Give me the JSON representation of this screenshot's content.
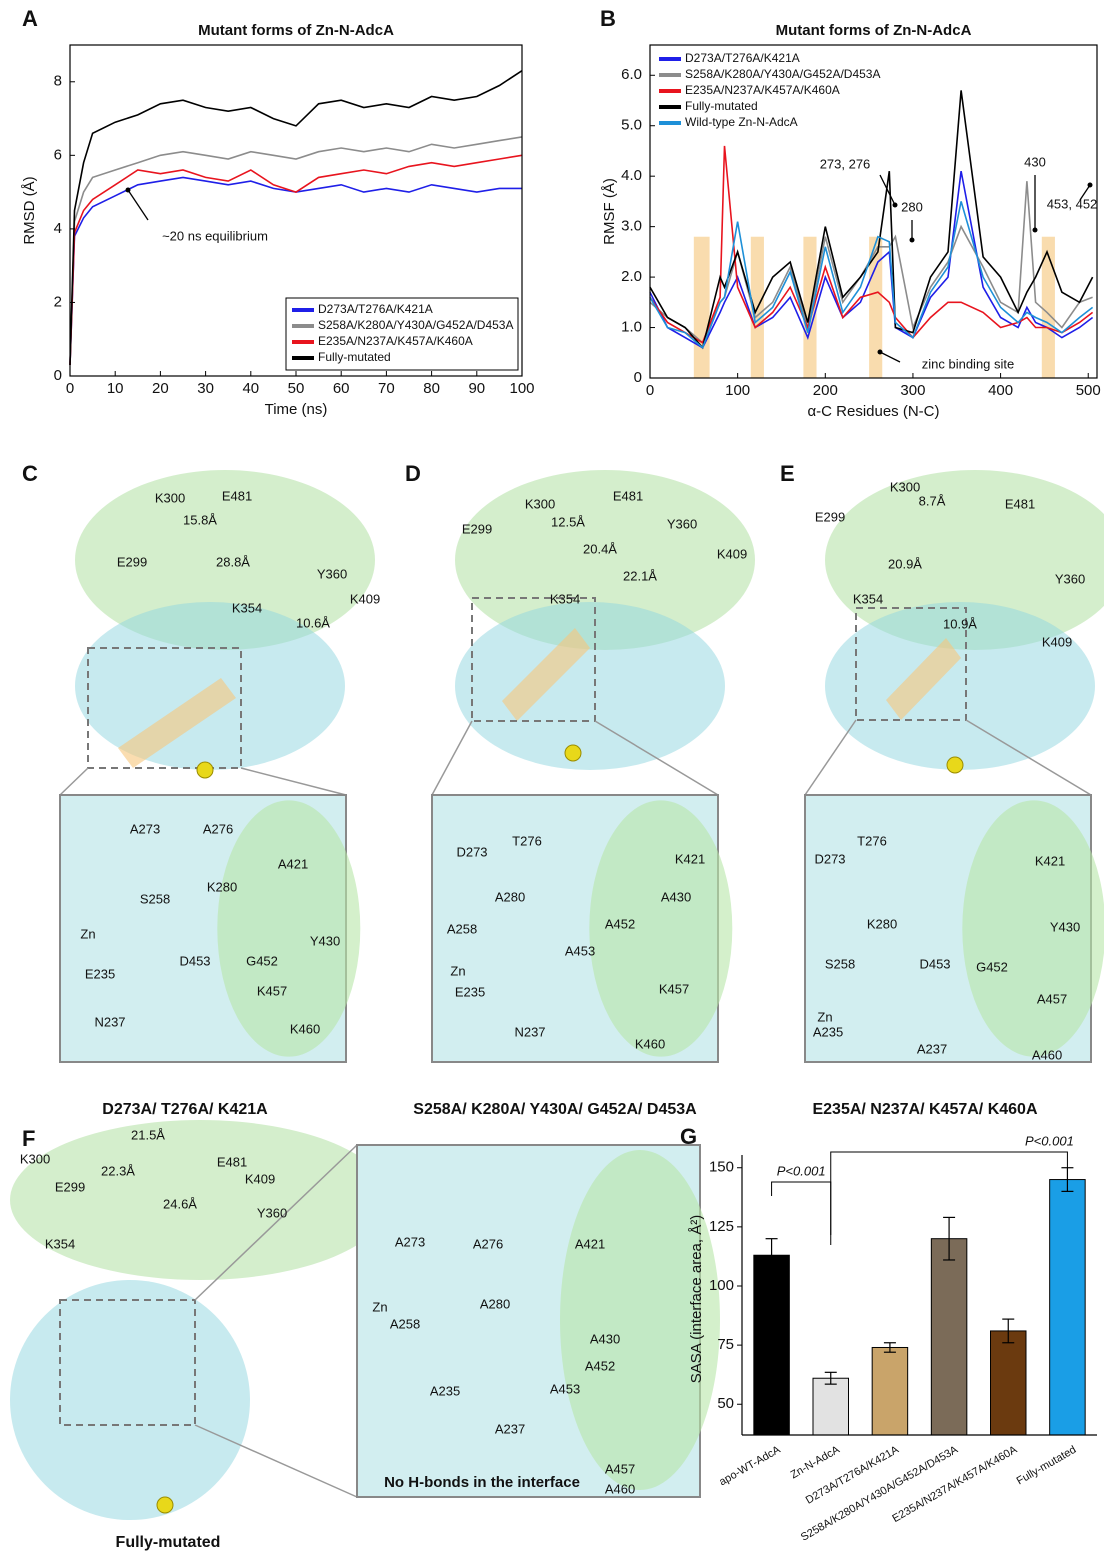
{
  "chart_data": [
    {
      "type": "line",
      "panel": "A",
      "title": "Mutant forms of Zn-N-AdcA",
      "xlabel": "Time (ns)",
      "ylabel": "RMSD (Å)",
      "x": [
        0,
        1,
        3,
        5,
        10,
        15,
        20,
        25,
        30,
        35,
        40,
        45,
        50,
        55,
        60,
        65,
        70,
        75,
        80,
        85,
        90,
        95,
        100
      ],
      "series": [
        {
          "name": "D273A/T276A/K421A",
          "color": "#1f1fe8",
          "values": [
            0.3,
            3.8,
            4.3,
            4.6,
            4.9,
            5.2,
            5.3,
            5.4,
            5.3,
            5.2,
            5.3,
            5.1,
            5.0,
            5.1,
            5.2,
            5.0,
            5.1,
            5.0,
            5.2,
            5.1,
            5.0,
            5.1,
            5.1
          ]
        },
        {
          "name": "S258A/K280A/Y430A/G452A/D453A",
          "color": "#8c8c8c",
          "values": [
            0.3,
            4.2,
            5.0,
            5.4,
            5.6,
            5.8,
            6.0,
            6.1,
            6.0,
            5.9,
            6.1,
            6.0,
            5.9,
            6.1,
            6.2,
            6.1,
            6.2,
            6.1,
            6.3,
            6.2,
            6.3,
            6.4,
            6.5
          ]
        },
        {
          "name": "E235A/N237A/K457A/K460A",
          "color": "#e8141e",
          "values": [
            0.3,
            3.9,
            4.5,
            4.8,
            5.2,
            5.6,
            5.5,
            5.6,
            5.4,
            5.3,
            5.6,
            5.2,
            5.0,
            5.4,
            5.5,
            5.6,
            5.5,
            5.7,
            5.8,
            5.7,
            5.8,
            5.9,
            6.0
          ]
        },
        {
          "name": "Fully-mutated",
          "color": "#000000",
          "values": [
            0.3,
            4.5,
            5.8,
            6.6,
            6.9,
            7.1,
            7.4,
            7.5,
            7.3,
            7.2,
            7.3,
            7.0,
            6.8,
            7.4,
            7.5,
            7.3,
            7.4,
            7.3,
            7.6,
            7.5,
            7.6,
            7.9,
            8.3
          ]
        }
      ],
      "xlim": [
        0,
        100
      ],
      "ylim": [
        0,
        9
      ],
      "xticks": [
        0,
        10,
        20,
        30,
        40,
        50,
        60,
        70,
        80,
        90,
        100
      ],
      "yticks": [
        0,
        2,
        4,
        6,
        8
      ],
      "annotations": [
        "~20 ns equilibrium"
      ],
      "legend": "lower right"
    },
    {
      "type": "line",
      "panel": "B",
      "title": "Mutant forms of Zn-N-AdcA",
      "xlabel": "α-C Residues (N-C)",
      "ylabel": "RMSF (Å)",
      "x": [
        0,
        20,
        40,
        60,
        80,
        85,
        100,
        120,
        140,
        160,
        180,
        200,
        220,
        240,
        260,
        273,
        280,
        300,
        320,
        340,
        355,
        380,
        400,
        420,
        430,
        440,
        453,
        470,
        490,
        505
      ],
      "series": [
        {
          "name": "D273A/T276A/K421A",
          "color": "#1f1fe8",
          "values": [
            1.7,
            1.0,
            0.8,
            0.6,
            1.3,
            1.5,
            2.0,
            1.0,
            1.2,
            1.6,
            0.8,
            2.0,
            1.2,
            1.5,
            2.3,
            2.5,
            1.0,
            0.8,
            1.6,
            2.0,
            4.1,
            1.8,
            1.2,
            1.0,
            1.4,
            1.1,
            1.0,
            0.8,
            1.0,
            1.2
          ]
        },
        {
          "name": "S258A/K280A/Y430A/G452A/D453A",
          "color": "#8c8c8c",
          "values": [
            1.5,
            1.2,
            1.0,
            0.7,
            1.5,
            1.6,
            2.5,
            1.2,
            1.5,
            2.2,
            1.0,
            2.8,
            1.5,
            2.0,
            2.6,
            2.6,
            2.8,
            1.0,
            1.8,
            2.3,
            3.0,
            2.2,
            1.5,
            1.3,
            3.9,
            1.5,
            1.3,
            1.0,
            1.5,
            1.6
          ]
        },
        {
          "name": "E235A/N237A/K457A/K460A",
          "color": "#e8141e",
          "values": [
            1.6,
            1.1,
            0.9,
            0.7,
            1.6,
            4.6,
            1.8,
            1.0,
            1.3,
            1.8,
            1.0,
            2.2,
            1.2,
            1.6,
            1.7,
            1.5,
            1.2,
            0.8,
            1.2,
            1.5,
            1.5,
            1.3,
            1.0,
            1.1,
            1.2,
            1.0,
            1.0,
            0.9,
            1.1,
            1.3
          ]
        },
        {
          "name": "Fully-mutated",
          "color": "#000000",
          "values": [
            1.8,
            1.2,
            1.0,
            0.6,
            2.0,
            1.8,
            2.5,
            1.3,
            2.0,
            2.3,
            1.1,
            3.0,
            1.6,
            2.0,
            2.5,
            4.1,
            1.0,
            0.9,
            2.0,
            2.5,
            5.7,
            2.4,
            2.0,
            1.3,
            1.7,
            2.0,
            2.5,
            1.7,
            1.5,
            2.0
          ]
        },
        {
          "name": "Wild-type Zn-N-AdcA",
          "color": "#1e90d8",
          "values": [
            1.6,
            1.0,
            0.9,
            0.6,
            1.5,
            1.6,
            3.1,
            1.1,
            1.4,
            2.1,
            0.9,
            2.6,
            1.3,
            1.8,
            2.8,
            2.7,
            1.1,
            0.8,
            1.7,
            2.2,
            3.5,
            2.0,
            1.4,
            1.1,
            1.3,
            1.2,
            1.1,
            0.9,
            1.2,
            1.4
          ]
        }
      ],
      "highlight_ranges": [
        [
          50,
          68
        ],
        [
          115,
          130
        ],
        [
          175,
          190
        ],
        [
          250,
          265
        ],
        [
          447,
          462
        ]
      ],
      "xlim": [
        0,
        510
      ],
      "ylim": [
        0,
        6.6
      ],
      "xticks": [
        0,
        100,
        200,
        300,
        400,
        500
      ],
      "yticks": [
        0,
        {
          "value": 1,
          "label": "1.0"
        },
        {
          "value": 2,
          "label": "2.0"
        },
        {
          "value": 3,
          "label": "3.0"
        },
        {
          "value": 4,
          "label": "4.0"
        },
        {
          "value": 5,
          "label": "5.0"
        },
        {
          "value": 6,
          "label": "6.0"
        }
      ],
      "annotations": [
        "273, 276",
        "280",
        "430",
        "453, 452",
        "zinc binding site"
      ],
      "legend": "upper left"
    },
    {
      "type": "bar",
      "panel": "G",
      "ylabel": "SASA (interface area, Å²)",
      "categories": [
        "apo-WT-AdcA",
        "Zn-N-AdcA",
        "D273A/T276A/K421A",
        "S258A/K280A/Y430A/G452A/D453A",
        "E235A/N237A/K457A/K460A",
        "Fully-mutated"
      ],
      "values": [
        113,
        61,
        74,
        120,
        81,
        145
      ],
      "errors": [
        7,
        2.5,
        2,
        9,
        5,
        5
      ],
      "colors": [
        "#000000",
        "#e2e2e2",
        "#c9a46a",
        "#7b6b58",
        "#6b3a0f",
        "#1a9ee6"
      ],
      "ylim": [
        37,
        152
      ],
      "yticks": [
        50,
        75,
        100,
        125,
        150
      ],
      "annotations": [
        "P<0.001",
        "P<0.001"
      ]
    }
  ],
  "panels": [
    {
      "letter": "C",
      "caption": "D273A/ T276A/ K421A",
      "labels": [
        "K300",
        "E481",
        "15.8Å",
        "E299",
        "28.8Å",
        "Y360",
        "K354",
        "K409",
        "10.6Å",
        "A273",
        "A276",
        "A421",
        "S258",
        "K280",
        "Zn",
        "Y430",
        "E235",
        "D453",
        "G452",
        "K457",
        "N237",
        "K460"
      ]
    },
    {
      "letter": "D",
      "caption": "S258A/ K280A/ Y430A/ G452A/ D453A",
      "labels": [
        "K300",
        "E481",
        "12.5Å",
        "E299",
        "20.4Å",
        "Y360",
        "K409",
        "22.1Å",
        "K354",
        "T276",
        "K421",
        "D273",
        "A280",
        "A430",
        "A452",
        "A258",
        "A453",
        "Zn",
        "E235",
        "K457",
        "N237",
        "K460"
      ]
    },
    {
      "letter": "E",
      "caption": "E235A/ N237A/ K457A/ K460A",
      "labels": [
        "K300",
        "8.7Å",
        "E481",
        "E299",
        "20.9Å",
        "Y360",
        "K354",
        "10.9Å",
        "K409",
        "T276",
        "K421",
        "D273",
        "K280",
        "Y430",
        "S258",
        "D453",
        "G452",
        "A457",
        "Zn",
        "A235",
        "A237",
        "A460"
      ]
    },
    {
      "letter": "F",
      "caption": "Fully-mutated",
      "labels": [
        "21.5Å",
        "K300",
        "E481",
        "22.3Å",
        "K409",
        "E299",
        "24.6Å",
        "Y360",
        "K354",
        "A273",
        "A276",
        "A421",
        "A280",
        "A258",
        "Zn",
        "A430",
        "A452",
        "A453",
        "A235",
        "A237",
        "A457",
        "A460",
        "No H-bonds in the interface"
      ]
    }
  ]
}
